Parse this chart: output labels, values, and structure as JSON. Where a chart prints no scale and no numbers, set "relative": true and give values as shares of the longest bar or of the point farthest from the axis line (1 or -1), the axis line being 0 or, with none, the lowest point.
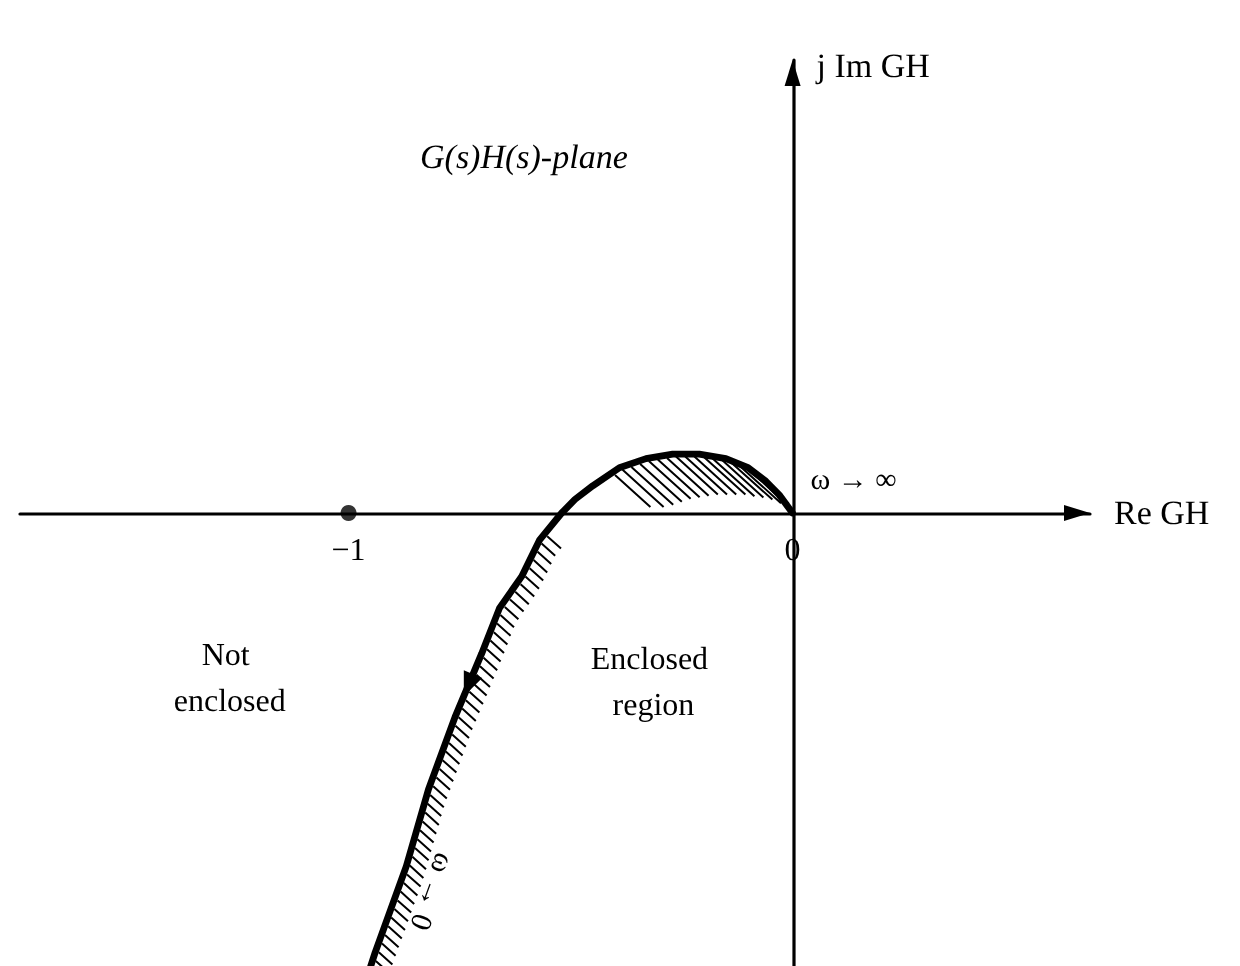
{
  "chart_data": {
    "type": "line",
    "title": "G(s)H(s)-plane",
    "xlabel": "Re GH",
    "relative": true,
    "xlim": [
      -1.74,
      0.67
    ],
    "xticks": [
      -1,
      0
    ],
    "series": [
      {
        "color": "#000000",
        "x": [
          0,
          -0.03,
          -0.06,
          -0.1,
          -0.15,
          -0.21,
          -0.27,
          -0.33,
          -0.39,
          -0.45,
          -0.49,
          -0.52,
          -0.57,
          -0.61,
          -0.66,
          -0.7,
          -0.76,
          -0.82,
          -0.87,
          -0.94,
          -0.95
        ],
        "values": [
          0,
          0.04,
          0.07,
          0.1,
          0.12,
          0.13,
          0.13,
          0.12,
          0.1,
          0.06,
          0.03,
          0,
          -0.06,
          -0.14,
          -0.21,
          -0.31,
          -0.45,
          -0.61,
          -0.78,
          -0.97,
          -1
        ]
      },
      {
        "type": "scatter",
        "color": "#000000",
        "marker": "circle",
        "x": [
          -1
        ],
        "values": [
          0
        ]
      }
    ],
    "annotations": [
      "j Im GH",
      {
        "text": "ω → ∞",
        "x": 0,
        "y": 0
      },
      "Not enclosed",
      "Enclosed region",
      {
        "text": "ω → 0",
        "x": -0.87,
        "y": -0.78
      }
    ],
    "marker": "none"
  }
}
